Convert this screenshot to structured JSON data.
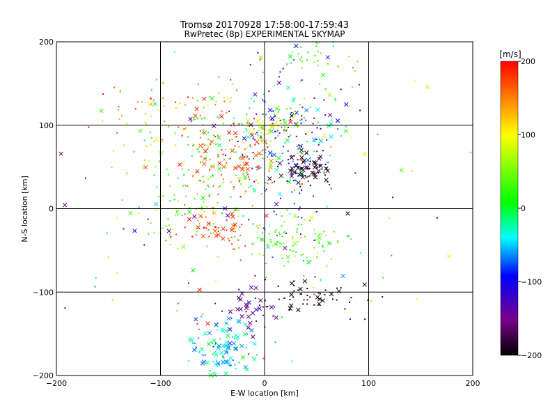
{
  "chart_data": {
    "type": "scatter",
    "title": "Tromsø 20170928 17:58:00-17:59:43",
    "subtitle": "RwPretec (8p) EXPERIMENTAL SKYMAP",
    "xlabel": "E-W location [km]",
    "ylabel": "N-S location [km]",
    "xlim": [
      -200,
      200
    ],
    "ylim": [
      -200,
      200
    ],
    "xticks": [
      -200,
      -100,
      0,
      100,
      200
    ],
    "yticks": [
      -200,
      -100,
      0,
      100,
      200
    ],
    "grid": true,
    "markers": [
      "dot",
      "x"
    ],
    "colorbar": {
      "label": "[m/s]",
      "range": [
        -200,
        200
      ],
      "ticks": [
        -200,
        -100,
        0,
        100,
        200
      ],
      "colormap": [
        "#000000",
        "#7a008a",
        "#0000ff",
        "#00ffff",
        "#00ff00",
        "#ffff00",
        "#ff0000"
      ]
    },
    "clusters": [
      {
        "center": [
          40,
          47
        ],
        "spread": [
          13,
          10
        ],
        "count": 70,
        "velocity": [
          -200,
          -170
        ],
        "x_marker_share": 0.6
      },
      {
        "center": [
          20,
          70
        ],
        "spread": [
          25,
          55
        ],
        "count": 170,
        "velocity": [
          -150,
          10
        ],
        "x_marker_share": 0.2
      },
      {
        "center": [
          25,
          110
        ],
        "spread": [
          30,
          15
        ],
        "count": 60,
        "velocity": [
          -200,
          100
        ],
        "x_marker_share": 0.3
      },
      {
        "center": [
          5,
          100
        ],
        "spread": [
          15,
          12
        ],
        "count": 50,
        "velocity": [
          60,
          110
        ],
        "x_marker_share": 0.2
      },
      {
        "center": [
          -30,
          60
        ],
        "spread": [
          25,
          25
        ],
        "count": 110,
        "velocity": [
          140,
          200
        ],
        "x_marker_share": 0.25
      },
      {
        "center": [
          -45,
          -25
        ],
        "spread": [
          20,
          12
        ],
        "count": 60,
        "velocity": [
          150,
          200
        ],
        "x_marker_share": 0.2
      },
      {
        "center": [
          -60,
          40
        ],
        "spread": [
          35,
          45
        ],
        "count": 170,
        "velocity": [
          -10,
          80
        ],
        "x_marker_share": 0.1
      },
      {
        "center": [
          -90,
          110
        ],
        "spread": [
          40,
          20
        ],
        "count": 60,
        "velocity": [
          100,
          200
        ],
        "x_marker_share": 0.05
      },
      {
        "center": [
          30,
          -40
        ],
        "spread": [
          25,
          15
        ],
        "count": 90,
        "velocity": [
          0,
          70
        ],
        "x_marker_share": 0.1
      },
      {
        "center": [
          45,
          -105
        ],
        "spread": [
          20,
          10
        ],
        "count": 50,
        "velocity": [
          -200,
          -180
        ],
        "x_marker_share": 0.3
      },
      {
        "center": [
          -40,
          -170
        ],
        "spread": [
          15,
          18
        ],
        "count": 120,
        "velocity": [
          -80,
          10
        ],
        "x_marker_share": 0.55
      },
      {
        "center": [
          -10,
          -120
        ],
        "spread": [
          12,
          15
        ],
        "count": 40,
        "velocity": [
          -170,
          -110
        ],
        "x_marker_share": 0.6
      },
      {
        "center": [
          45,
          180
        ],
        "spread": [
          20,
          15
        ],
        "count": 40,
        "velocity": [
          0,
          70
        ],
        "x_marker_share": 0.05
      },
      {
        "center": [
          0,
          0
        ],
        "spread": [
          110,
          110
        ],
        "count": 140,
        "velocity": [
          -200,
          200
        ],
        "x_marker_share": 0.2
      }
    ]
  }
}
